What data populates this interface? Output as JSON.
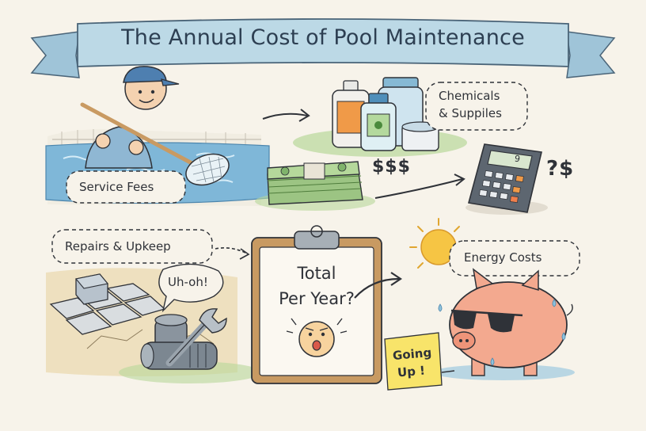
{
  "title": "The Annual Cost of Pool Maintenance",
  "labels": {
    "service": "Service Fees",
    "chemicals_line1": "Chemicals",
    "chemicals_line2": "& Suppiles",
    "money": "$$$",
    "calc_question": "?$",
    "calc_display": "9",
    "repairs": "Repairs & Upkeep",
    "uh_oh": "Uh-oh!",
    "total_line1": "Total",
    "total_line2": "Per Year?",
    "energy": "Energy Costs",
    "going_up_line1": "Going",
    "going_up_line2": "Up !"
  },
  "colors": {
    "background": "#f7f3ea",
    "banner": "#bcd9e6",
    "water": "#7fb7d8",
    "ink": "#2f3238",
    "sun": "#f6c544",
    "piggy": "#f3a98f",
    "money": "#7fb36b",
    "clipboard": "#c89a62",
    "sticky_note": "#f8e46a"
  },
  "icons": [
    "worker-icon",
    "pool-net-icon",
    "chemical-bottles-icon",
    "cash-stack-icon",
    "calculator-icon",
    "paver-tiles-icon",
    "pool-pump-icon",
    "wrench-icon",
    "clipboard-icon",
    "worried-face-icon",
    "sun-icon",
    "piggy-bank-icon",
    "sunglasses-icon"
  ]
}
